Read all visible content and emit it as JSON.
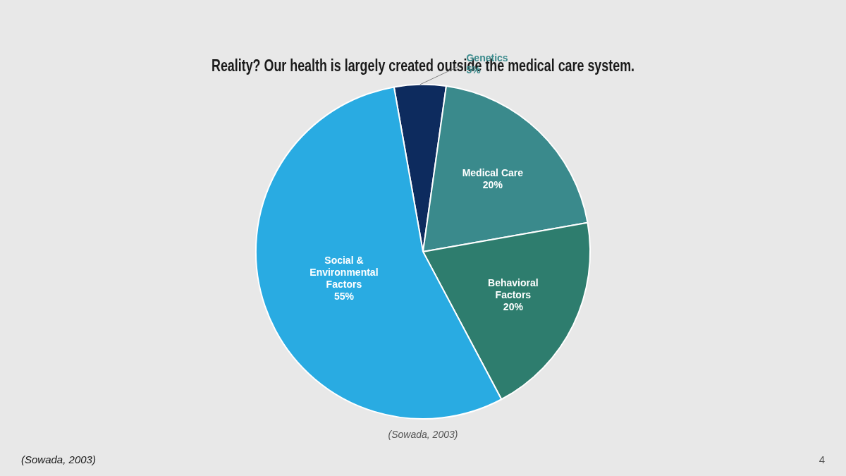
{
  "chart_data": {
    "type": "pie",
    "title": "Reality? Our health is largely created outside the medical care system.",
    "values": [
      5,
      20,
      20,
      55
    ],
    "value_labels": [
      "Genetics\n5%",
      "Medical Care\n20%",
      "Behavioral\nFactors\n20%",
      "Social &\nEnvironmental\nFactors\n55%"
    ],
    "colors": [
      "#0D2B5E",
      "#3A8A8C",
      "#2E7D6E",
      "#29ABE2"
    ],
    "data_labels": true,
    "annotations": [
      "(Sowada, 2003)",
      "(Sowada, 2003)",
      "4"
    ]
  }
}
